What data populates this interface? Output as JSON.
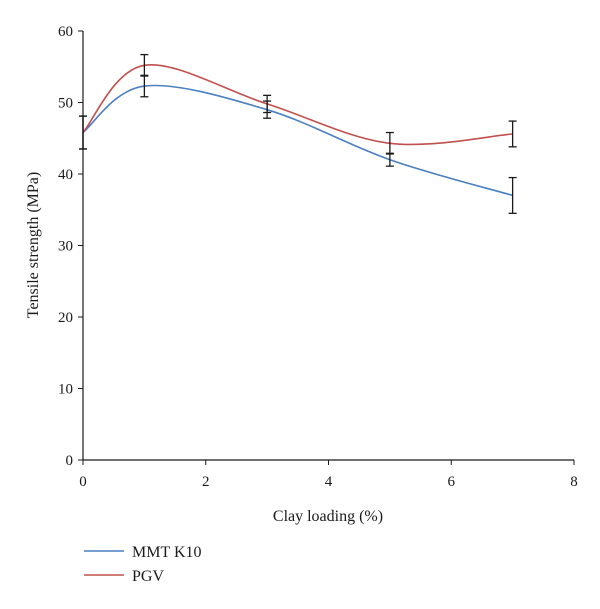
{
  "chart_data": {
    "type": "line",
    "title": "",
    "xlabel": "Clay loading (%)",
    "ylabel": "Tensile strength (MPa)",
    "xlim": [
      0,
      8
    ],
    "ylim": [
      0,
      60
    ],
    "xticks": [
      0,
      2,
      4,
      6,
      8
    ],
    "yticks": [
      0,
      10,
      20,
      30,
      40,
      50,
      60
    ],
    "grid": false,
    "legend_position": "bottom-left",
    "series": [
      {
        "name": "MMT K10",
        "color": "#4a7fc1",
        "x": [
          0,
          1,
          3,
          5,
          7
        ],
        "y": [
          45.8,
          52.3,
          49.0,
          42.0,
          37.0
        ],
        "error": [
          2.3,
          1.5,
          1.2,
          0.9,
          2.5
        ]
      },
      {
        "name": "PGV",
        "color": "#c0504d",
        "x": [
          0,
          1,
          3,
          5,
          7
        ],
        "y": [
          45.8,
          55.2,
          49.8,
          44.3,
          45.6
        ],
        "error": [
          2.3,
          1.5,
          1.2,
          1.5,
          1.8
        ]
      }
    ]
  }
}
